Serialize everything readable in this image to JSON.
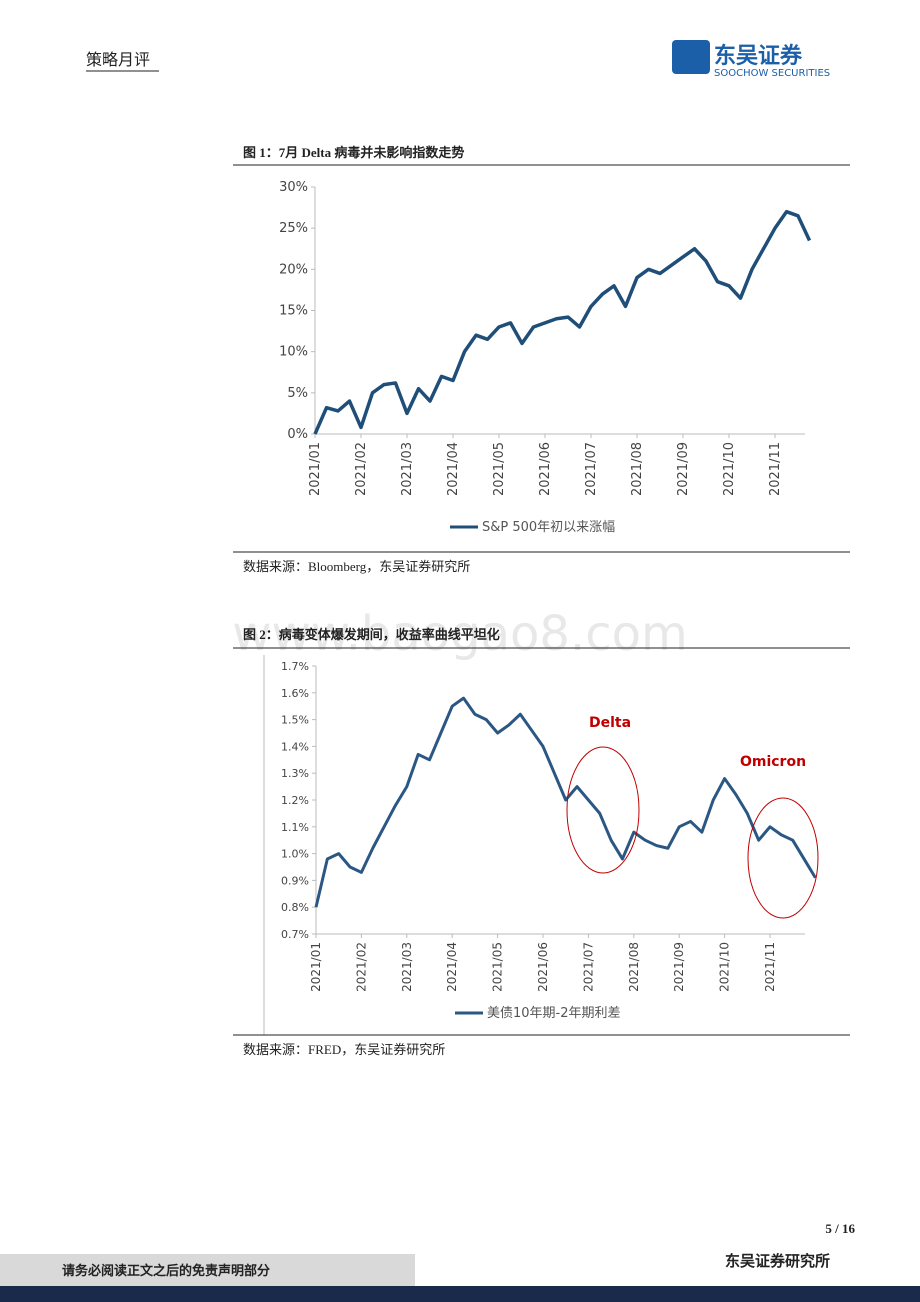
{
  "header": {
    "section": "策略月评",
    "logo_cn": "东吴证券",
    "logo_en": "SOOCHOW SECURITIES"
  },
  "figures": [
    {
      "title": "图 1：7月 Delta 病毒并未影响指数走势",
      "source": "数据来源：Bloomberg，东吴证券研究所"
    },
    {
      "title": "图 2：病毒变体爆发期间，收益率曲线平坦化",
      "source": "数据来源：FRED，东吴证券研究所"
    }
  ],
  "watermark": "www.baogao8.com",
  "chart_data": [
    {
      "type": "line",
      "categories": [
        "2021/01",
        null,
        null,
        null,
        "2021/02",
        null,
        null,
        null,
        "2021/03",
        null,
        null,
        null,
        "2021/04",
        null,
        null,
        null,
        "2021/05",
        null,
        null,
        null,
        "2021/06",
        null,
        null,
        null,
        "2021/07",
        null,
        null,
        null,
        "2021/08",
        null,
        null,
        null,
        "2021/09",
        null,
        null,
        null,
        "2021/10",
        null,
        null,
        null,
        "2021/11",
        null,
        null,
        null
      ],
      "series": [
        {
          "name": "S&P 500年初以来涨幅",
          "color": "#1f4e79",
          "values": [
            0,
            3.2,
            2.8,
            4.0,
            0.8,
            5,
            6,
            6.2,
            2.5,
            5.5,
            4,
            7,
            6.5,
            10,
            12,
            11.5,
            13,
            13.5,
            11,
            13,
            13.5,
            14,
            14.2,
            13,
            15.5,
            17,
            18,
            15.5,
            19,
            20,
            19.5,
            20.5,
            21.5,
            22.5,
            21,
            18.5,
            18,
            16.5,
            20,
            22.5,
            25,
            27,
            26.5,
            23.5
          ]
        }
      ],
      "ylim": [
        0,
        30
      ],
      "yticks": [
        {
          "value": 0,
          "label": "0%"
        },
        {
          "value": 5,
          "label": "5%"
        },
        {
          "value": 10,
          "label": "10%"
        },
        {
          "value": 15,
          "label": "15%"
        },
        {
          "value": 20,
          "label": "20%"
        },
        {
          "value": 25,
          "label": "25%"
        },
        {
          "value": 30,
          "label": "30%"
        }
      ]
    },
    {
      "type": "line",
      "categories": [
        "2021/01",
        null,
        null,
        null,
        "2021/02",
        null,
        null,
        null,
        "2021/03",
        null,
        null,
        null,
        "2021/04",
        null,
        null,
        null,
        "2021/05",
        null,
        null,
        null,
        "2021/06",
        null,
        null,
        null,
        "2021/07",
        null,
        null,
        null,
        "2021/08",
        null,
        null,
        null,
        "2021/09",
        null,
        null,
        null,
        "2021/10",
        null,
        null,
        null,
        "2021/11",
        null,
        null,
        null,
        null
      ],
      "series": [
        {
          "name": "美债10年期-2年期利差",
          "color": "#2a5783",
          "values": [
            0.8,
            0.98,
            1.0,
            0.95,
            0.93,
            1.02,
            1.1,
            1.18,
            1.25,
            1.37,
            1.35,
            1.45,
            1.55,
            1.58,
            1.52,
            1.5,
            1.45,
            1.48,
            1.52,
            1.46,
            1.4,
            1.3,
            1.2,
            1.25,
            1.2,
            1.15,
            1.05,
            0.98,
            1.08,
            1.05,
            1.03,
            1.02,
            1.1,
            1.12,
            1.08,
            1.2,
            1.28,
            1.22,
            1.15,
            1.05,
            1.1,
            1.07,
            1.05,
            0.98,
            0.91
          ]
        }
      ],
      "ylim": [
        0.7,
        1.7
      ],
      "yticks": [
        {
          "value": 0.7,
          "label": "0.7%"
        },
        {
          "value": 0.8,
          "label": "0.8%"
        },
        {
          "value": 0.9,
          "label": "0.9%"
        },
        {
          "value": 1.0,
          "label": "1.0%"
        },
        {
          "value": 1.1,
          "label": "1.1%"
        },
        {
          "value": 1.2,
          "label": "1.2%"
        },
        {
          "value": 1.3,
          "label": "1.3%"
        },
        {
          "value": 1.4,
          "label": "1.4%"
        },
        {
          "value": 1.5,
          "label": "1.5%"
        },
        {
          "value": 1.6,
          "label": "1.6%"
        },
        {
          "value": 1.7,
          "label": "1.7%"
        }
      ],
      "annotations": [
        "Delta",
        "Omicron"
      ]
    }
  ],
  "footer": {
    "page": "5 / 16",
    "disclaimer": "请务必阅读正文之后的免责声明部分",
    "org": "东吴证券研究所"
  }
}
